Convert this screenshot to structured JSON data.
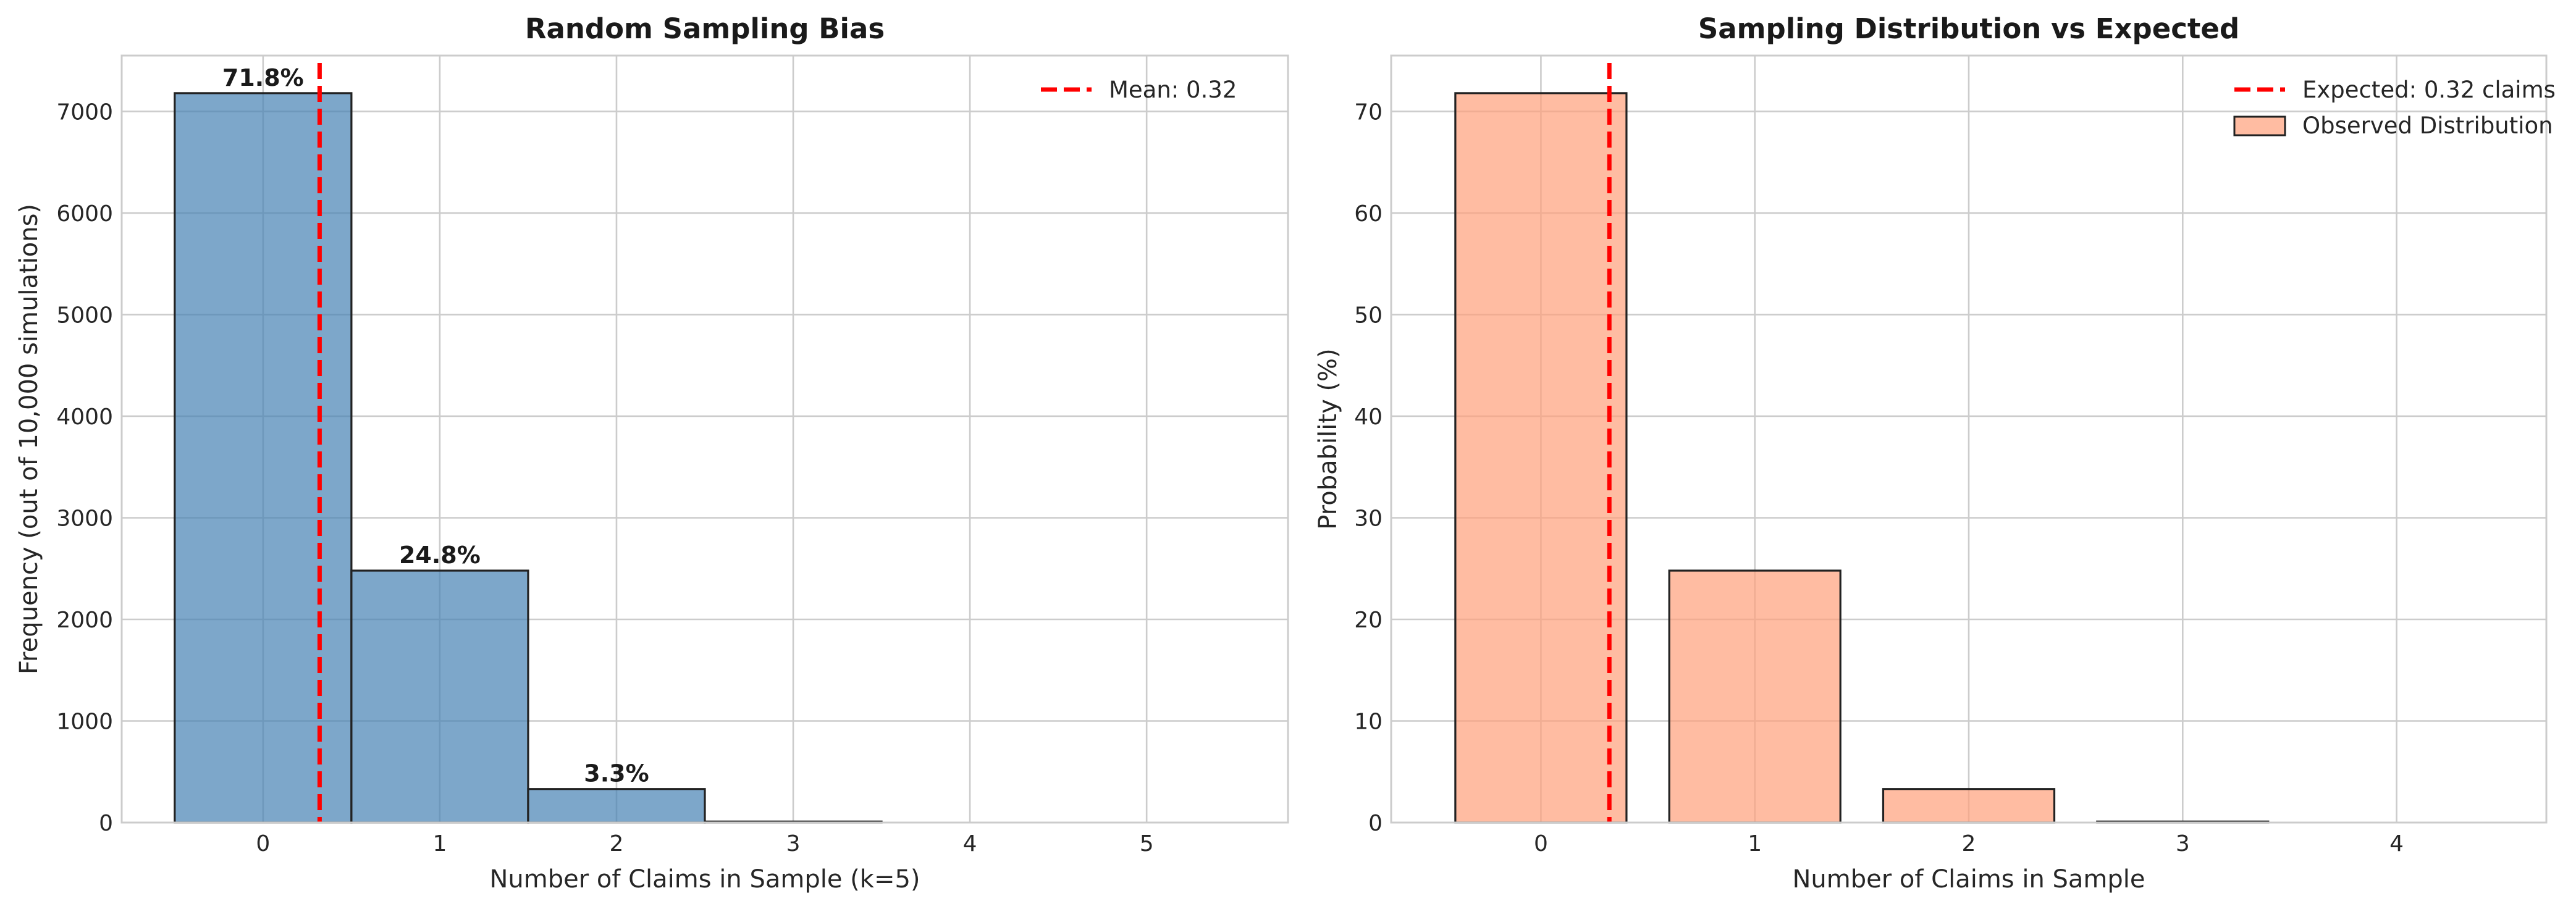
{
  "chart_data": [
    {
      "type": "bar",
      "title": "Random Sampling Bias",
      "xlabel": "Number of Claims in Sample (k=5)",
      "ylabel": "Frequency (out of 10,000 simulations)",
      "xlim": [
        -0.8,
        5.8
      ],
      "ylim": [
        0,
        7550
      ],
      "xticks": [
        "0",
        "1",
        "2",
        "3",
        "4",
        "5"
      ],
      "yticks": [
        "0",
        "1000",
        "2000",
        "3000",
        "4000",
        "5000",
        "6000",
        "7000"
      ],
      "categories": [
        "0",
        "1",
        "2",
        "3",
        "4",
        "5"
      ],
      "values": [
        7180,
        2480,
        330,
        10,
        0,
        0
      ],
      "bar_labels": [
        "71.8%",
        "24.8%",
        "3.3%",
        "",
        "",
        ""
      ],
      "bar_width": 1.0,
      "bar_color": "#4682b4",
      "mean_line": {
        "x": 0.32,
        "color": "#ff0000",
        "style": "dashed"
      },
      "legend": {
        "position": "top-right",
        "entries": [
          {
            "label": "Mean: 0.32",
            "kind": "dashed-line",
            "color": "#ff0000"
          }
        ]
      },
      "grid": true
    },
    {
      "type": "bar",
      "title": "Sampling Distribution vs Expected",
      "xlabel": "Number of Claims in Sample",
      "ylabel": "Probability (%)",
      "xlim": [
        -0.7,
        4.7
      ],
      "ylim": [
        0,
        75.5
      ],
      "xticks": [
        "0",
        "1",
        "2",
        "3",
        "4"
      ],
      "yticks": [
        "0",
        "10",
        "20",
        "30",
        "40",
        "50",
        "60",
        "70"
      ],
      "categories": [
        "0",
        "1",
        "2",
        "3",
        "4"
      ],
      "values": [
        71.8,
        24.8,
        3.3,
        0.1,
        0.0
      ],
      "bar_labels": [
        "",
        "",
        "",
        "",
        ""
      ],
      "bar_width": 0.8,
      "bar_color": "#ffa07a",
      "mean_line": {
        "x": 0.32,
        "color": "#ff0000",
        "style": "dashed"
      },
      "legend": {
        "position": "top-right",
        "entries": [
          {
            "label": "Expected: 0.32 claims",
            "kind": "dashed-line",
            "color": "#ff0000"
          },
          {
            "label": "Observed Distribution",
            "kind": "patch",
            "color": "#ffa07a"
          }
        ]
      },
      "grid": true
    }
  ]
}
